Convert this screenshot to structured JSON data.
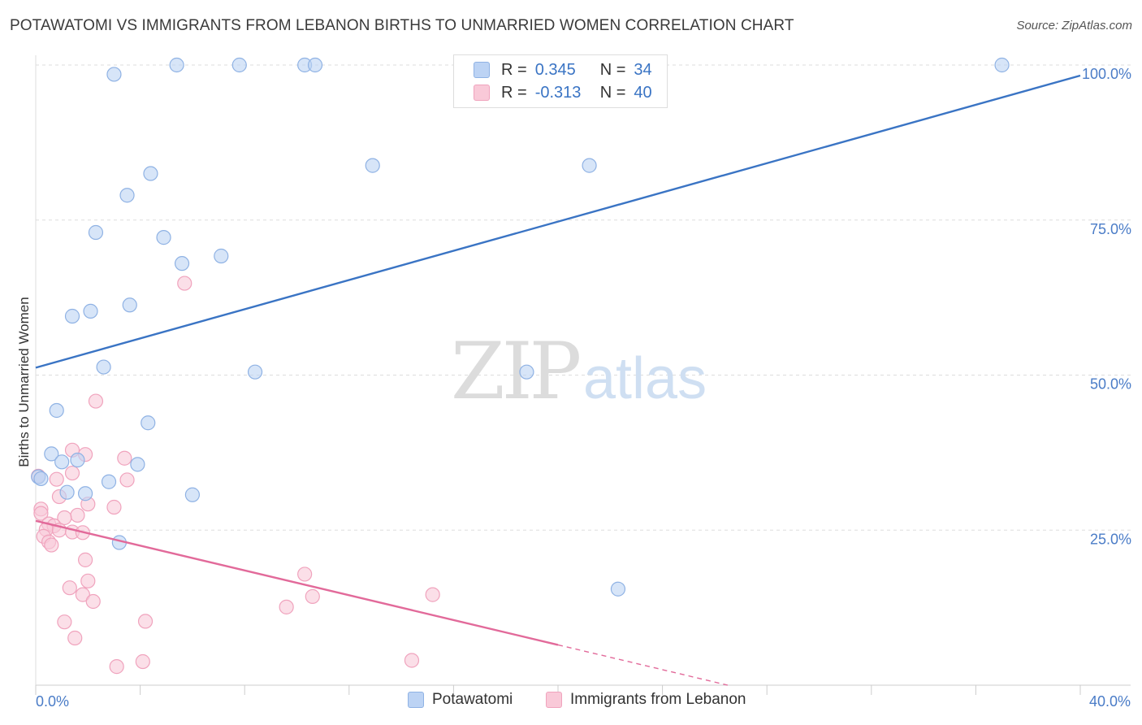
{
  "title": "POTAWATOMI VS IMMIGRANTS FROM LEBANON BIRTHS TO UNMARRIED WOMEN CORRELATION CHART",
  "source": "Source: ZipAtlas.com",
  "watermark": {
    "zip": "ZIP",
    "atlas": "atlas"
  },
  "colors": {
    "blue": "#3a74c4",
    "blue_fill": "#bcd3f4",
    "blue_stroke": "#8fb2e4",
    "pink": "#e26a9a",
    "pink_fill": "#f9c9d8",
    "pink_stroke": "#f0a3bd",
    "grid": "#dddddd",
    "axis_text": "#4a7cc7"
  },
  "legend": {
    "series1": {
      "r_label": "R =",
      "r_value": "0.345",
      "n_label": "N =",
      "n_value": "34"
    },
    "series2": {
      "r_label": "R =",
      "r_value": "-0.313",
      "n_label": "N =",
      "n_value": "40"
    }
  },
  "bottom_legend": {
    "series1": "Potawatomi",
    "series2": "Immigrants from Lebanon"
  },
  "chart_data": {
    "type": "scatter",
    "title": "POTAWATOMI VS IMMIGRANTS FROM LEBANON BIRTHS TO UNMARRIED WOMEN CORRELATION CHART",
    "xlabel": "",
    "ylabel": "Births to Unmarried Women",
    "xlim": [
      0,
      40
    ],
    "ylim": [
      0,
      100
    ],
    "x_tick_labels": [
      "0.0%",
      "40.0%"
    ],
    "y_ticks": [
      25,
      50,
      75,
      100
    ],
    "y_tick_labels": [
      "25.0%",
      "50.0%",
      "75.0%",
      "100.0%"
    ],
    "series": [
      {
        "name": "Potawatomi",
        "color": "#3a74c4",
        "trend": {
          "x": [
            0,
            40
          ],
          "y": [
            51.2,
            98.3
          ],
          "solid_to_x": 40
        },
        "points": [
          {
            "x": 3.0,
            "y": 98.5
          },
          {
            "x": 5.4,
            "y": 100
          },
          {
            "x": 7.8,
            "y": 100
          },
          {
            "x": 10.3,
            "y": 100
          },
          {
            "x": 10.7,
            "y": 100
          },
          {
            "x": 37.0,
            "y": 100
          },
          {
            "x": 4.4,
            "y": 82.5
          },
          {
            "x": 3.5,
            "y": 79
          },
          {
            "x": 12.9,
            "y": 83.8
          },
          {
            "x": 21.2,
            "y": 83.8
          },
          {
            "x": 2.3,
            "y": 73
          },
          {
            "x": 4.9,
            "y": 72.2
          },
          {
            "x": 5.6,
            "y": 68
          },
          {
            "x": 7.1,
            "y": 69.2
          },
          {
            "x": 3.6,
            "y": 61.3
          },
          {
            "x": 2.1,
            "y": 60.3
          },
          {
            "x": 1.4,
            "y": 59.5
          },
          {
            "x": 2.6,
            "y": 51.3
          },
          {
            "x": 8.4,
            "y": 50.5
          },
          {
            "x": 18.8,
            "y": 50.5
          },
          {
            "x": 0.8,
            "y": 44.3
          },
          {
            "x": 4.3,
            "y": 42.3
          },
          {
            "x": 0.6,
            "y": 37.3
          },
          {
            "x": 1.0,
            "y": 36
          },
          {
            "x": 1.6,
            "y": 36.3
          },
          {
            "x": 3.9,
            "y": 35.6
          },
          {
            "x": 0.1,
            "y": 33.6
          },
          {
            "x": 0.2,
            "y": 33.3
          },
          {
            "x": 2.8,
            "y": 32.8
          },
          {
            "x": 1.2,
            "y": 31.1
          },
          {
            "x": 1.9,
            "y": 30.9
          },
          {
            "x": 6.0,
            "y": 30.7
          },
          {
            "x": 3.2,
            "y": 23
          },
          {
            "x": 22.3,
            "y": 15.5
          }
        ]
      },
      {
        "name": "Immigrants from Lebanon",
        "color": "#e26a9a",
        "trend": {
          "x": [
            0,
            26.5
          ],
          "y": [
            26.5,
            0
          ],
          "solid_to_x": 20
        },
        "points": [
          {
            "x": 5.7,
            "y": 64.8
          },
          {
            "x": 2.3,
            "y": 45.8
          },
          {
            "x": 1.4,
            "y": 37.9
          },
          {
            "x": 1.9,
            "y": 37.2
          },
          {
            "x": 3.4,
            "y": 36.6
          },
          {
            "x": 1.4,
            "y": 34.2
          },
          {
            "x": 0.1,
            "y": 33.7
          },
          {
            "x": 0.8,
            "y": 33.2
          },
          {
            "x": 3.5,
            "y": 33.1
          },
          {
            "x": 0.9,
            "y": 30.4
          },
          {
            "x": 2.0,
            "y": 29.2
          },
          {
            "x": 3.0,
            "y": 28.7
          },
          {
            "x": 0.2,
            "y": 28.4
          },
          {
            "x": 0.2,
            "y": 27.7
          },
          {
            "x": 1.6,
            "y": 27.4
          },
          {
            "x": 1.1,
            "y": 27.0
          },
          {
            "x": 0.5,
            "y": 26.0
          },
          {
            "x": 0.7,
            "y": 25.7
          },
          {
            "x": 0.4,
            "y": 25.1
          },
          {
            "x": 0.9,
            "y": 25.0
          },
          {
            "x": 1.4,
            "y": 24.7
          },
          {
            "x": 1.8,
            "y": 24.6
          },
          {
            "x": 0.3,
            "y": 24.0
          },
          {
            "x": 0.5,
            "y": 23.1
          },
          {
            "x": 0.6,
            "y": 22.6
          },
          {
            "x": 1.9,
            "y": 20.2
          },
          {
            "x": 10.3,
            "y": 17.9
          },
          {
            "x": 2.0,
            "y": 16.8
          },
          {
            "x": 1.3,
            "y": 15.7
          },
          {
            "x": 1.8,
            "y": 14.6
          },
          {
            "x": 15.2,
            "y": 14.6
          },
          {
            "x": 10.6,
            "y": 14.3
          },
          {
            "x": 2.2,
            "y": 13.5
          },
          {
            "x": 9.6,
            "y": 12.6
          },
          {
            "x": 1.1,
            "y": 10.2
          },
          {
            "x": 4.2,
            "y": 10.3
          },
          {
            "x": 1.5,
            "y": 7.6
          },
          {
            "x": 14.4,
            "y": 4.0
          },
          {
            "x": 4.1,
            "y": 3.8
          },
          {
            "x": 3.1,
            "y": 3.0
          }
        ]
      }
    ]
  }
}
